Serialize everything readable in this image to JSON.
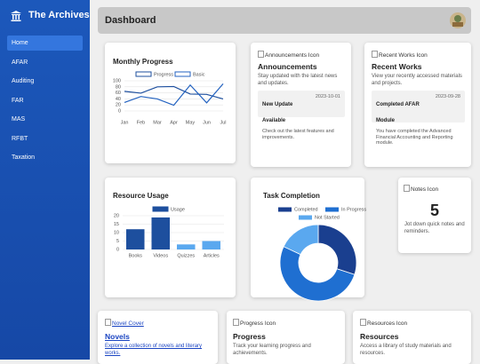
{
  "sidebar": {
    "title": "The Archives",
    "nav": [
      "Home",
      "AFAR",
      "Auditing",
      "FAR",
      "MAS",
      "RFBT",
      "Taxation"
    ]
  },
  "header": {
    "title": "Dashboard"
  },
  "announcements": {
    "icon_alt": "Announcements Icon",
    "title": "Announcements",
    "description": "Stay updated with the latest news and updates.",
    "item": {
      "title": "New Update Available",
      "date": "2023-10-01",
      "text": "Check out the latest features and improvements."
    }
  },
  "recent_works": {
    "icon_alt": "Recent Works Icon",
    "title": "Recent Works",
    "description": "View your recently accessed materials and projects.",
    "item": {
      "title": "Completed AFAR Module",
      "date": "2023-09-28",
      "text": "You have completed the Advanced Financial Accounting and Reporting module."
    }
  },
  "notes": {
    "icon_alt": "Notes Icon",
    "count": "5",
    "description": "Jot down quick notes and reminders."
  },
  "novels": {
    "icon_alt": "Novel Cover",
    "title": "Novels",
    "description": "Explore a collection of novels and literary works."
  },
  "progress": {
    "icon_alt": "Progress Icon",
    "title": "Progress",
    "description": "Track your learning progress and achievements."
  },
  "resources": {
    "icon_alt": "Resources Icon",
    "title": "Resources",
    "description": "Access a library of study materials and resources."
  },
  "chart_data": [
    {
      "type": "line",
      "title": "Monthly Progress",
      "categories": [
        "Jan",
        "Feb",
        "Mar",
        "Apr",
        "May",
        "Jun",
        "Jul"
      ],
      "series": [
        {
          "name": "Progress",
          "color": "#1d4f9e",
          "values": [
            65,
            59,
            80,
            81,
            56,
            55,
            40
          ]
        },
        {
          "name": "Basic",
          "color": "#2362c0",
          "values": [
            28,
            48,
            40,
            19,
            86,
            27,
            90
          ]
        }
      ],
      "ylim": [
        0,
        100
      ],
      "yticks": [
        0,
        20,
        40,
        60,
        80,
        100
      ],
      "grid": true
    },
    {
      "type": "bar",
      "title": "Resource Usage",
      "categories": [
        "Books",
        "Videos",
        "Quizzes",
        "Articles"
      ],
      "series": [
        {
          "name": "Usage",
          "color": "#1d4f9e",
          "colors": [
            "#1d4f9e",
            "#1d4f9e",
            "#5aa8ef",
            "#5aa8ef"
          ],
          "values": [
            12,
            19,
            3,
            5
          ]
        }
      ],
      "ylim": [
        0,
        20
      ],
      "yticks": [
        0,
        5,
        10,
        15,
        20
      ],
      "grid": true
    },
    {
      "type": "pie",
      "title": "Task Completion",
      "categories": [
        "Completed",
        "In Progress",
        "Not Started"
      ],
      "values": [
        30,
        52,
        18
      ],
      "colors": [
        "#1a3f8f",
        "#1f6fd1",
        "#5aa8ef"
      ],
      "donut": true
    }
  ]
}
